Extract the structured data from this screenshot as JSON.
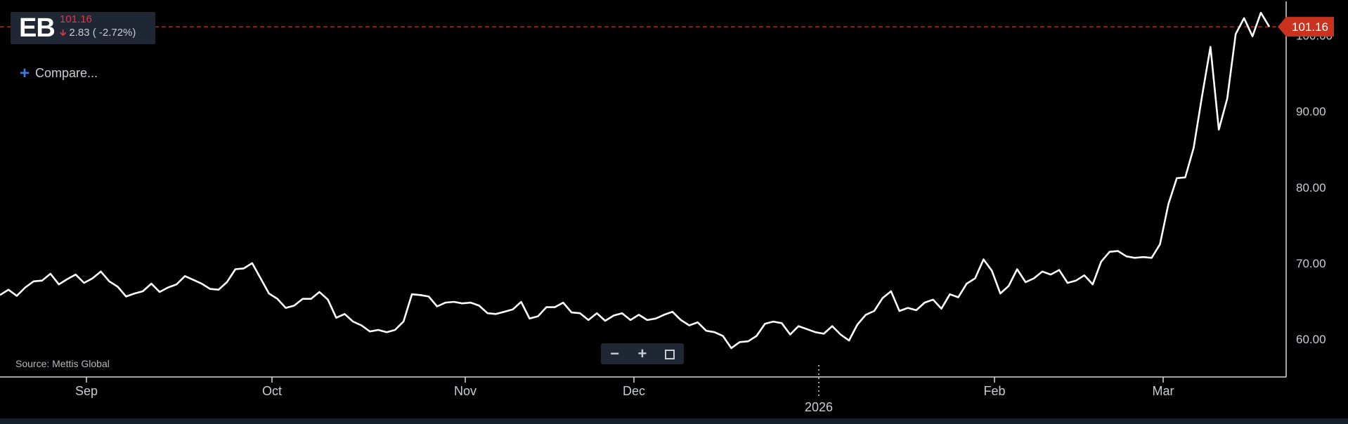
{
  "ticker": {
    "symbol": "EB",
    "price": "101.16",
    "change": "2.83 ( -2.72%)",
    "change_direction": "down"
  },
  "compare": {
    "label": "Compare..."
  },
  "source": "Source: Mettis Global",
  "last_price_label": "101.16",
  "colors": {
    "background": "#000000",
    "line": "#ffffff",
    "down": "#e4334a",
    "last_price_tag": "#c8321e",
    "panel": "#1e2733",
    "axis_text": "#c9cdd2"
  },
  "icons": {
    "zoom_out": "minus-icon",
    "zoom_in": "plus-icon",
    "fullscreen": "fullscreen-icon",
    "compare": "plus-icon",
    "change": "arrow-down-icon"
  },
  "chart_data": {
    "type": "line",
    "series": [
      {
        "values": [
          65.8,
          66.5,
          65.7,
          66.8,
          67.6,
          67.7,
          68.6,
          67.2,
          67.9,
          68.5,
          67.4,
          68.0,
          68.9,
          67.6,
          66.9,
          65.6,
          66.0,
          66.3,
          67.3,
          66.2,
          66.8,
          67.2,
          68.3,
          67.8,
          67.3,
          66.6,
          66.5,
          67.5,
          69.2,
          69.3,
          70.0,
          68.0,
          66.0,
          65.3,
          64.1,
          64.4,
          65.3,
          65.3,
          66.2,
          65.2,
          62.8,
          63.3,
          62.3,
          61.8,
          61.0,
          61.2,
          60.9,
          61.2,
          62.3,
          65.9,
          65.8,
          65.6,
          64.3,
          64.8,
          64.9,
          64.7,
          64.8,
          64.4,
          63.4,
          63.3,
          63.6,
          63.9,
          64.9,
          62.7,
          63.0,
          64.2,
          64.2,
          64.8,
          63.5,
          63.4,
          62.5,
          63.4,
          62.4,
          63.1,
          63.4,
          62.5,
          63.2,
          62.5,
          62.7,
          63.2,
          63.6,
          62.5,
          61.8,
          62.2,
          61.1,
          60.9,
          60.4,
          58.8,
          59.6,
          59.7,
          60.4,
          62.0,
          62.3,
          62.1,
          60.6,
          61.7,
          61.3,
          60.9,
          60.7,
          61.7,
          60.6,
          59.8,
          61.9,
          63.2,
          63.7,
          65.4,
          66.3,
          63.7,
          64.1,
          63.8,
          64.8,
          65.2,
          64.0,
          65.9,
          65.5,
          67.3,
          68.0,
          70.5,
          69.0,
          66.0,
          67.0,
          69.2,
          67.5,
          68.0,
          68.9,
          68.5,
          69.1,
          67.4,
          67.7,
          68.4,
          67.2,
          70.2,
          71.5,
          71.6,
          70.9,
          70.7,
          70.8,
          70.7,
          72.5,
          77.8,
          81.2,
          81.3,
          85.2,
          92.0,
          98.5,
          87.6,
          91.7,
          100.2,
          102.3,
          99.9,
          103.0,
          101.16
        ]
      }
    ],
    "x_labels": [
      "Sep",
      "Oct",
      "Nov",
      "Dec",
      "2026",
      "Feb",
      "Mar"
    ],
    "y_ticks": [
      "60.00",
      "70.00",
      "80.00",
      "90.00",
      "100.00"
    ],
    "ylim": [
      55,
      104.5
    ],
    "last_value": 101.16
  }
}
